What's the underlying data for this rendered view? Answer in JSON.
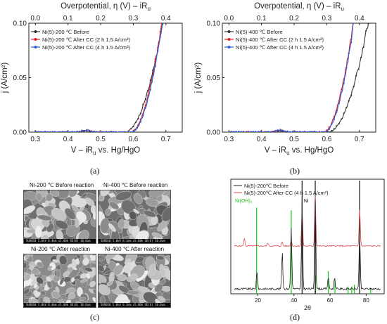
{
  "chart_data": [
    {
      "panel": "(a)",
      "type": "line",
      "top_axis_label": "Overpotential, η (V) – iR",
      "top_axis_sub": "u",
      "top_ticks": [
        "0.0",
        "0.1",
        "0.2",
        "0.3",
        "0.4"
      ],
      "top_range": [
        0.0,
        0.4
      ],
      "xlabel_pre": "V – iR",
      "xlabel_sub": "u",
      "xlabel_post": " vs. Hg/HgO",
      "ylabel": "j (A/cm²)",
      "x_ticks": [
        "0.3",
        "0.4",
        "0.5",
        "0.6",
        "0.7"
      ],
      "y_ticks": [
        "0.00",
        "0.05",
        "0.10"
      ],
      "xlim": [
        0.28,
        0.75
      ],
      "ylim": [
        0,
        0.1
      ],
      "series": [
        {
          "name": "Ni(5)-200 ℃ Before",
          "color": "#333333",
          "onset": 0.575,
          "k": 0.6
        },
        {
          "name": "Ni(5)-200 ℃ After CC (2 h 1.5 A/cm²)",
          "color": "#e02020",
          "onset": 0.592,
          "k": 0.88,
          "bump": true
        },
        {
          "name": "Ni(5)-200 ℃ After CC (4 h 1.5 A/cm²)",
          "color": "#2b5ed8",
          "onset": 0.595,
          "k": 0.9,
          "bump": true
        }
      ]
    },
    {
      "panel": "(b)",
      "type": "line",
      "top_axis_label": "Overpotential, η (V) – iR",
      "top_axis_sub": "u",
      "top_ticks": [
        "0.0",
        "0.1",
        "0.2",
        "0.3",
        "0.4"
      ],
      "top_range": [
        0.0,
        0.4
      ],
      "xlabel_pre": "V – iR",
      "xlabel_sub": "u",
      "xlabel_post": " vs. Hg/HgO",
      "ylabel": "j (A/cm²)",
      "x_ticks": [
        "0.3",
        "0.4",
        "0.5",
        "0.6",
        "0.7"
      ],
      "y_ticks": [
        "0.00",
        "0.05",
        "0.10"
      ],
      "xlim": [
        0.28,
        0.75
      ],
      "ylim": [
        0,
        0.1
      ],
      "series": [
        {
          "name": "Ni(5)-400 ℃ Before",
          "color": "#333333",
          "onset": 0.605,
          "k": 0.55
        },
        {
          "name": "Ni(5)-400 ℃ After CC (2 h 1.5 A/cm²)",
          "color": "#e02020",
          "onset": 0.59,
          "k": 0.95,
          "bump": true
        },
        {
          "name": "Ni(5)-400 ℃ After CC (4 h 1.5 A/cm²)",
          "color": "#2b5ed8",
          "onset": 0.593,
          "k": 0.98,
          "bump": true
        }
      ]
    },
    {
      "panel": "(d)",
      "type": "line",
      "xlabel": "2θ",
      "x_ticks": [
        "20",
        "40",
        "60",
        "80"
      ],
      "xlim": [
        5,
        90
      ],
      "series": [
        {
          "name": "Ni(5)-200℃ Before",
          "color": "#222222",
          "peaks": [
            [
              19.5,
              0.18
            ],
            [
              33.5,
              0.38
            ],
            [
              38.5,
              0.62
            ],
            [
              44.5,
              0.9
            ],
            [
              51.8,
              0.92
            ],
            [
              59,
              0.12
            ],
            [
              62.5,
              0.12
            ],
            [
              76.4,
              0.55
            ]
          ]
        },
        {
          "name": "Ni(5)-200℃ After CC (4 h 1.5 A/cm²)",
          "color": "#e05050",
          "peaks": [
            [
              12.5,
              0.12
            ],
            [
              25.5,
              0.05
            ],
            [
              33.5,
              0.07
            ],
            [
              38.5,
              0.1
            ],
            [
              44.5,
              0.55
            ],
            [
              51.8,
              0.8
            ],
            [
              76.4,
              0.6
            ]
          ]
        }
      ],
      "reference_lines": {
        "Ni(OH)2": {
          "label": "Ni(OH)₂",
          "color": "#19c319",
          "positions": [
            [
              19.3,
              0.95
            ],
            [
              38.5,
              0.92
            ],
            [
              52,
              0.2
            ],
            [
              59,
              0.25
            ],
            [
              62.7,
              0.15
            ],
            [
              70,
              0.08
            ],
            [
              72,
              0.08
            ],
            [
              73.5,
              0.1
            ],
            [
              82.5,
              0.06
            ]
          ]
        },
        "Ni": {
          "label": "Ni",
          "color": "#111111",
          "positions": [
            [
              44.5,
              1.0
            ],
            [
              51.8,
              1.0
            ],
            [
              76.4,
              1.0
            ]
          ]
        }
      }
    }
  ],
  "sem": {
    "tiles": [
      {
        "label": "Ni-200 ℃ Before reaction"
      },
      {
        "label": "Ni-400 ℃ Before reaction"
      },
      {
        "label": "Ni-200 ℃ After reaction"
      },
      {
        "label": "Ni-400 ℃ After reaction"
      }
    ]
  },
  "captions": {
    "a": "(a)",
    "b": "(b)",
    "c": "(c)",
    "d": "(d)"
  }
}
